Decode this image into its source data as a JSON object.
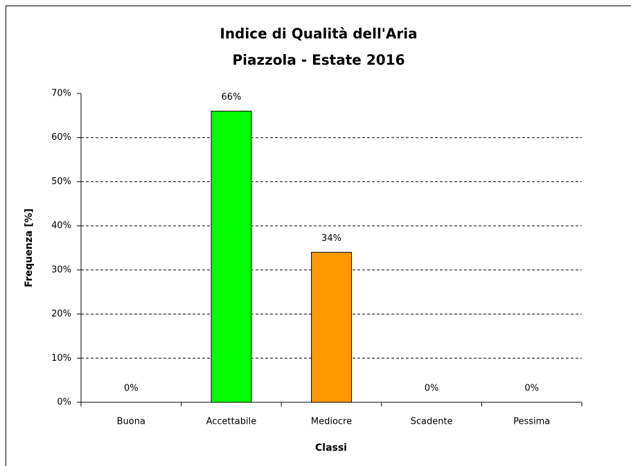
{
  "chart_data": {
    "type": "bar",
    "title": "Indice di Qualità dell'Aria",
    "subtitle": "Piazzola - Estate 2016",
    "x_label": "Classi",
    "y_label": "Frequenza [%]",
    "categories": [
      "Buona",
      "Accettabile",
      "Mediocre",
      "Scadente",
      "Pessima"
    ],
    "values": [
      0,
      66,
      34,
      0,
      0
    ],
    "value_labels": [
      "0%",
      "66%",
      "34%",
      "0%",
      "0%"
    ],
    "colors": [
      null,
      "#00ff00",
      "#ff9900",
      null,
      null
    ],
    "ylim": [
      0,
      70
    ],
    "yticks": [
      {
        "value": 0,
        "label": "0%"
      },
      {
        "value": 10,
        "label": "10%"
      },
      {
        "value": 20,
        "label": "20%"
      },
      {
        "value": 30,
        "label": "30%"
      },
      {
        "value": 40,
        "label": "40%"
      },
      {
        "value": 50,
        "label": "50%"
      },
      {
        "value": 60,
        "label": "60%"
      },
      {
        "value": 70,
        "label": "70%"
      }
    ],
    "grid": true
  }
}
